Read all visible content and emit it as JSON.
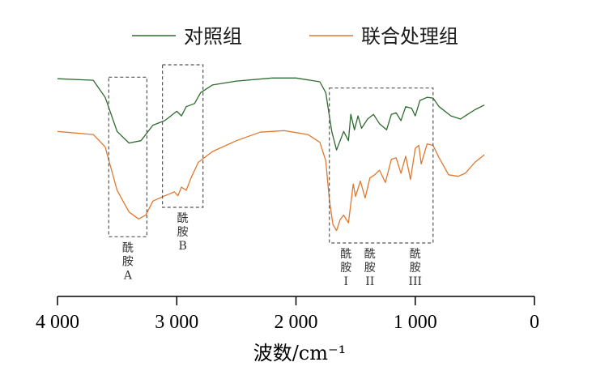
{
  "chart_data": {
    "type": "line",
    "xlabel": "波数/cm⁻¹",
    "x_reversed": true,
    "xlim": [
      4000,
      0
    ],
    "xticks": [
      {
        "value": 4000,
        "label": "4 000"
      },
      {
        "value": 3000,
        "label": "3 000"
      },
      {
        "value": 2000,
        "label": "2 000"
      },
      {
        "value": 1000,
        "label": "1 000"
      },
      {
        "value": 0,
        "label": "0"
      }
    ],
    "legend_position": "top",
    "series": [
      {
        "name": "对照组",
        "color": "#2e6b2e",
        "points": [
          [
            4000,
            0.96
          ],
          [
            3700,
            0.95
          ],
          [
            3600,
            0.84
          ],
          [
            3500,
            0.62
          ],
          [
            3400,
            0.545
          ],
          [
            3300,
            0.56
          ],
          [
            3200,
            0.66
          ],
          [
            3100,
            0.69
          ],
          [
            3050,
            0.72
          ],
          [
            3000,
            0.75
          ],
          [
            2960,
            0.72
          ],
          [
            2920,
            0.78
          ],
          [
            2850,
            0.8
          ],
          [
            2800,
            0.87
          ],
          [
            2700,
            0.92
          ],
          [
            2500,
            0.945
          ],
          [
            2200,
            0.965
          ],
          [
            2000,
            0.965
          ],
          [
            1800,
            0.94
          ],
          [
            1750,
            0.87
          ],
          [
            1700,
            0.62
          ],
          [
            1660,
            0.5
          ],
          [
            1620,
            0.58
          ],
          [
            1600,
            0.62
          ],
          [
            1560,
            0.56
          ],
          [
            1540,
            0.73
          ],
          [
            1510,
            0.63
          ],
          [
            1480,
            0.72
          ],
          [
            1450,
            0.64
          ],
          [
            1400,
            0.7
          ],
          [
            1350,
            0.73
          ],
          [
            1300,
            0.67
          ],
          [
            1240,
            0.63
          ],
          [
            1200,
            0.73
          ],
          [
            1160,
            0.74
          ],
          [
            1120,
            0.69
          ],
          [
            1080,
            0.78
          ],
          [
            1030,
            0.77
          ],
          [
            1000,
            0.72
          ],
          [
            960,
            0.82
          ],
          [
            900,
            0.84
          ],
          [
            850,
            0.835
          ],
          [
            800,
            0.78
          ],
          [
            700,
            0.72
          ],
          [
            620,
            0.7
          ],
          [
            560,
            0.73
          ],
          [
            500,
            0.76
          ],
          [
            420,
            0.79
          ]
        ]
      },
      {
        "name": "联合处理组",
        "color": "#e0782e",
        "points": [
          [
            4000,
            0.62
          ],
          [
            3700,
            0.6
          ],
          [
            3600,
            0.52
          ],
          [
            3500,
            0.24
          ],
          [
            3400,
            0.1
          ],
          [
            3320,
            0.055
          ],
          [
            3260,
            0.08
          ],
          [
            3200,
            0.17
          ],
          [
            3100,
            0.205
          ],
          [
            3050,
            0.22
          ],
          [
            3020,
            0.23
          ],
          [
            2990,
            0.205
          ],
          [
            2960,
            0.26
          ],
          [
            2920,
            0.24
          ],
          [
            2880,
            0.32
          ],
          [
            2820,
            0.42
          ],
          [
            2700,
            0.49
          ],
          [
            2500,
            0.56
          ],
          [
            2300,
            0.615
          ],
          [
            2100,
            0.625
          ],
          [
            1900,
            0.6
          ],
          [
            1800,
            0.55
          ],
          [
            1750,
            0.43
          ],
          [
            1720,
            0.18
          ],
          [
            1690,
            0.02
          ],
          [
            1660,
            -0.02
          ],
          [
            1630,
            0.05
          ],
          [
            1600,
            0.08
          ],
          [
            1560,
            0.03
          ],
          [
            1520,
            0.28
          ],
          [
            1500,
            0.2
          ],
          [
            1460,
            0.3
          ],
          [
            1420,
            0.19
          ],
          [
            1380,
            0.32
          ],
          [
            1340,
            0.34
          ],
          [
            1300,
            0.37
          ],
          [
            1250,
            0.29
          ],
          [
            1200,
            0.44
          ],
          [
            1160,
            0.45
          ],
          [
            1120,
            0.35
          ],
          [
            1080,
            0.46
          ],
          [
            1040,
            0.31
          ],
          [
            1000,
            0.51
          ],
          [
            970,
            0.53
          ],
          [
            950,
            0.41
          ],
          [
            900,
            0.54
          ],
          [
            850,
            0.53
          ],
          [
            800,
            0.45
          ],
          [
            720,
            0.34
          ],
          [
            640,
            0.33
          ],
          [
            580,
            0.35
          ],
          [
            500,
            0.42
          ],
          [
            420,
            0.47
          ]
        ]
      }
    ],
    "annotations": [
      {
        "lines": [
          "酰",
          "胺",
          "A"
        ],
        "x_range": [
          3570,
          3250
        ],
        "y_range": [
          -0.06,
          0.97
        ]
      },
      {
        "lines": [
          "酰",
          "胺",
          "B"
        ],
        "x_range": [
          3120,
          2780
        ],
        "y_range": [
          0.13,
          1.05
        ]
      },
      {
        "lines": [
          "酰",
          "胺",
          "I"
        ],
        "x_range": [
          1720,
          850
        ],
        "y_range": [
          -0.1,
          0.9
        ],
        "group": "1"
      },
      {
        "lines": [
          "酰",
          "胺",
          "II"
        ],
        "group": "1"
      },
      {
        "lines": [
          "酰",
          "胺",
          "III"
        ],
        "group": "1"
      }
    ]
  }
}
